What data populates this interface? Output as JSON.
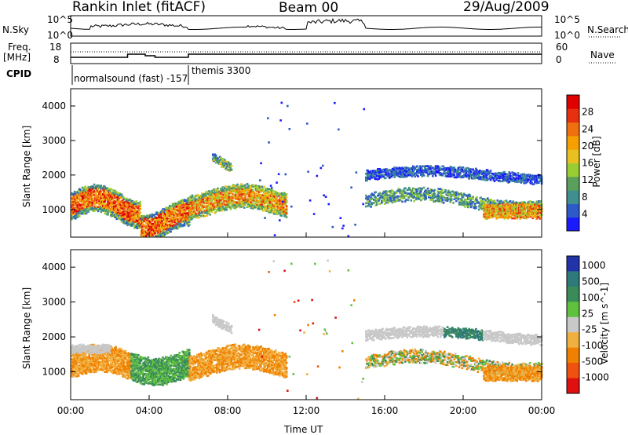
{
  "header": {
    "station": "Rankin Inlet (fitACF)",
    "beam": "Beam 00",
    "date": "29/Aug/2009"
  },
  "top_panels": {
    "nsky_label": "N.Sky",
    "nsky_ticks": [
      "10^5",
      "10^0"
    ],
    "nsearch_label": "N.Search",
    "nsearch_ticks": [
      "10^5",
      "10^0"
    ],
    "freq_label": "Freq.",
    "freq_unit": "[MHz]",
    "freq_ticks": [
      "18",
      "8"
    ],
    "nave_label": "Nave",
    "nave_ticks": [
      "60",
      "0"
    ],
    "cpid_label": "CPID",
    "cpid_modes": [
      {
        "text": "normalsound (fast) -157"
      },
      {
        "text": "themis 3300"
      }
    ]
  },
  "chart_data": [
    {
      "type": "heatmap",
      "name": "power",
      "ylabel": "Slant Range [km]",
      "xlabel": "Time UT",
      "x_ticks": [
        "00:00",
        "04:00",
        "08:00",
        "12:00",
        "16:00",
        "20:00",
        "00:00"
      ],
      "y_ticks": [
        "1000",
        "2000",
        "3000",
        "4000"
      ],
      "ylim": [
        200,
        4500
      ],
      "xlim_hours": [
        0,
        24
      ],
      "colorbar": {
        "label": "Power [dB]",
        "ticks": [
          "4",
          "8",
          "12",
          "16",
          "20",
          "24",
          "28"
        ],
        "colors": [
          "#1a1aff",
          "#2e59c8",
          "#3f8f8f",
          "#5aa05a",
          "#9acd32",
          "#e8c020",
          "#f5a000",
          "#f07010",
          "#e83010",
          "#e00000"
        ]
      }
    },
    {
      "type": "heatmap",
      "name": "velocity",
      "ylabel": "Slant Range [km]",
      "xlabel": "Time UT",
      "x_ticks": [
        "00:00",
        "04:00",
        "08:00",
        "12:00",
        "16:00",
        "20:00",
        "00:00"
      ],
      "y_ticks": [
        "1000",
        "2000",
        "3000",
        "4000"
      ],
      "ylim": [
        200,
        4500
      ],
      "xlim_hours": [
        0,
        24
      ],
      "colorbar": {
        "label": "Velocity [m s^-1]",
        "ticks": [
          "1000",
          "500",
          "100",
          "25",
          "-25",
          "-100",
          "-500",
          "-1000"
        ],
        "colors": [
          "#2233aa",
          "#2e7a7a",
          "#3a8a5a",
          "#60c040",
          "#c8c8c8",
          "#f0b040",
          "#f08000",
          "#f05010",
          "#e01010"
        ]
      }
    }
  ]
}
